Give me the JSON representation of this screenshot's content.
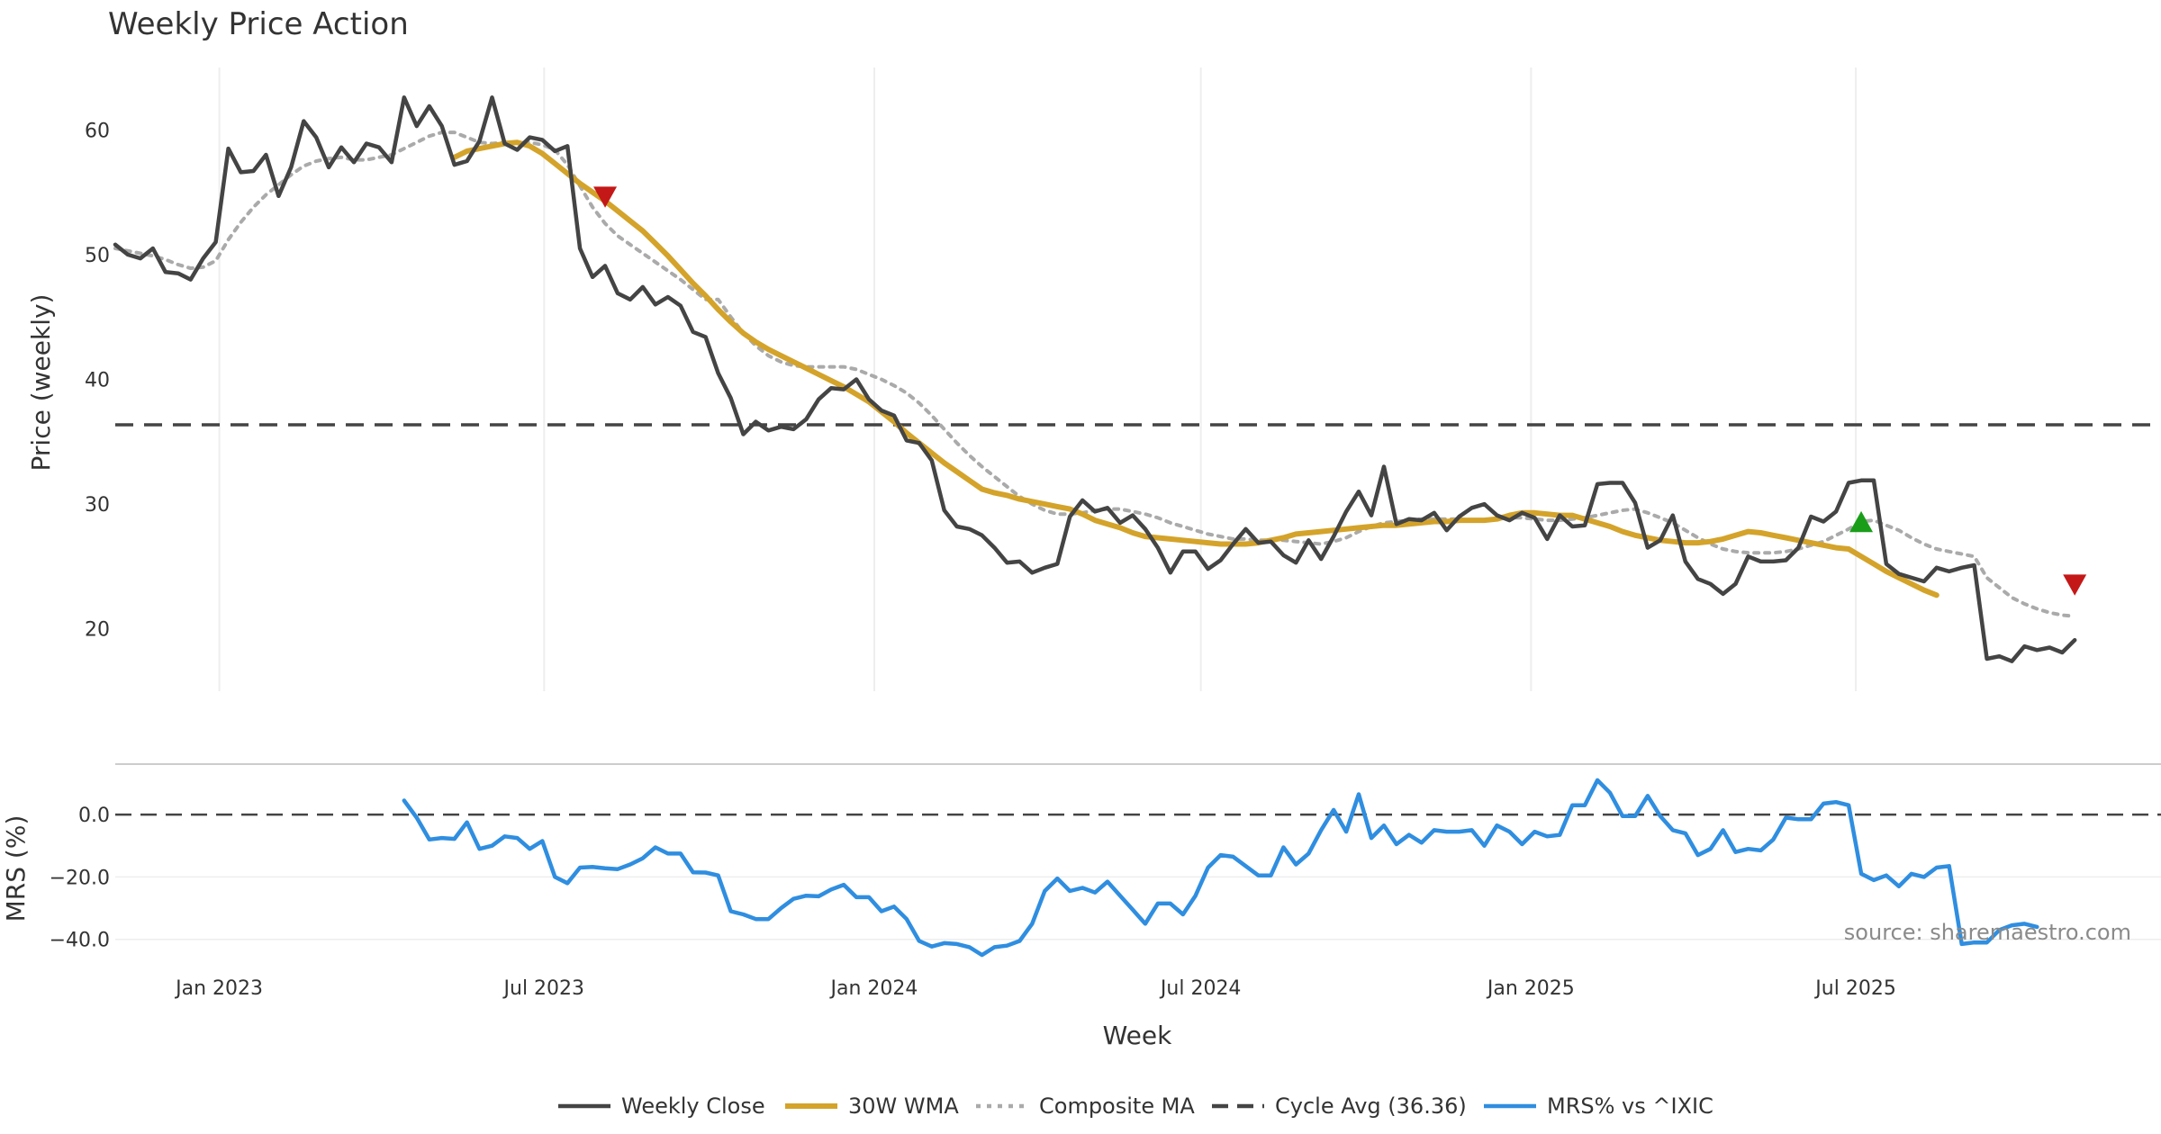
{
  "chart_data": {
    "type": "line",
    "title": "Weekly Price Action",
    "xlabel": "Week",
    "ylabel": "Price (weekly)",
    "ylabel_lower": "MRS (%)",
    "source_note": "source: sharemaestro.com",
    "x_range": [
      "2022-11-04",
      "2025-11-28"
    ],
    "ylim": [
      15,
      65
    ],
    "ylim_lower": [
      -47,
      13
    ],
    "yticks": [
      20,
      30,
      40,
      50,
      60
    ],
    "yticks_lower": [
      0,
      -20,
      -40
    ],
    "ytick_labels_lower": [
      "0.0",
      "−20.0",
      "−40.0"
    ],
    "xticks": [
      {
        "date": "2023-01-01",
        "label": "Jan 2023"
      },
      {
        "date": "2023-07-01",
        "label": "Jul 2023"
      },
      {
        "date": "2024-01-01",
        "label": "Jan 2024"
      },
      {
        "date": "2024-07-01",
        "label": "Jul 2024"
      },
      {
        "date": "2025-01-01",
        "label": "Jan 2025"
      },
      {
        "date": "2025-07-01",
        "label": "Jul 2025"
      }
    ],
    "reference_lines": [
      {
        "name": "Cycle Avg (36.36)",
        "value": 36.36,
        "panel": "price"
      },
      {
        "name": "zero",
        "value": 0,
        "panel": "mrs"
      }
    ],
    "colors": {
      "close": "#444444",
      "wma": "#d4a32a",
      "composite": "#aaaaaa",
      "cycle": "#444444",
      "mrs": "#2f8ee0",
      "buy_marker": "#1a9e1a",
      "sell_marker": "#c41818",
      "grid": "#eeeeee"
    },
    "series": [
      {
        "name": "Weekly Close",
        "panel": "price",
        "start": "2022-11-04",
        "step_days": 7,
        "values": [
          50.8,
          50.0,
          49.7,
          50.5,
          48.6,
          48.5,
          48.0,
          49.7,
          51.0,
          58.5,
          56.6,
          56.7,
          58.0,
          54.7,
          57.0,
          60.7,
          59.4,
          57.0,
          58.6,
          57.4,
          58.9,
          58.6,
          57.4,
          62.6,
          60.3,
          61.9,
          60.3,
          57.2,
          57.5,
          59.1,
          62.6,
          58.9,
          58.4,
          59.4,
          59.2,
          58.3,
          58.7,
          50.5,
          48.2,
          49.1,
          46.9,
          46.4,
          47.4,
          46.0,
          46.6,
          45.9,
          43.8,
          43.4,
          40.5,
          38.5,
          35.6,
          36.6,
          35.9,
          36.2,
          36.0,
          36.8,
          38.4,
          39.3,
          39.2,
          40.0,
          38.4,
          37.5,
          37.1,
          35.1,
          34.9,
          33.5,
          29.5,
          28.2,
          28.0,
          27.5,
          26.5,
          25.3,
          25.4,
          24.5,
          24.9,
          25.2,
          29.0,
          30.3,
          29.4,
          29.7,
          28.5,
          29.1,
          28.0,
          26.5,
          24.5,
          26.2,
          26.2,
          24.8,
          25.5,
          26.8,
          28.0,
          26.9,
          27.0,
          25.9,
          25.3,
          27.1,
          25.6,
          27.4,
          29.4,
          31.0,
          29.1,
          33.0,
          28.4,
          28.8,
          28.7,
          29.3,
          27.9,
          29.0,
          29.7,
          30.0,
          29.1,
          28.7,
          29.3,
          28.9,
          27.2,
          29.1,
          28.2,
          28.3,
          31.6,
          31.7,
          31.7,
          30.1,
          26.5,
          27.1,
          29.1,
          25.4,
          24.0,
          23.6,
          22.8,
          23.6,
          25.8,
          25.4,
          25.4,
          25.5,
          26.5,
          29.0,
          28.6,
          29.4,
          31.7,
          31.9,
          31.9,
          25.2,
          24.4,
          24.1,
          23.8,
          24.9,
          24.6,
          24.9,
          25.1,
          17.6,
          17.8,
          17.4,
          18.6,
          18.3,
          18.5,
          18.1,
          19.1
        ]
      },
      {
        "name": "30W WMA",
        "panel": "price",
        "start": "2023-05-12",
        "step_days": 7,
        "values": [
          57.8,
          58.3,
          58.5,
          58.7,
          58.9,
          59.0,
          58.7,
          58.1,
          57.3,
          56.5,
          55.7,
          55.0,
          54.3,
          53.5,
          52.7,
          51.9,
          50.9,
          49.9,
          48.8,
          47.7,
          46.7,
          45.6,
          44.6,
          43.7,
          43.0,
          42.4,
          41.9,
          41.4,
          40.9,
          40.4,
          39.9,
          39.4,
          38.8,
          38.2,
          37.4,
          36.6,
          35.7,
          34.9,
          34.1,
          33.3,
          32.6,
          31.9,
          31.2,
          30.9,
          30.7,
          30.4,
          30.2,
          30.0,
          29.8,
          29.6,
          29.2,
          28.7,
          28.4,
          28.1,
          27.7,
          27.4,
          27.3,
          27.2,
          27.1,
          27.0,
          26.9,
          26.8,
          26.8,
          26.8,
          26.9,
          27.1,
          27.3,
          27.6,
          27.7,
          27.8,
          27.9,
          28.0,
          28.1,
          28.2,
          28.3,
          28.3,
          28.4,
          28.5,
          28.6,
          28.6,
          28.7,
          28.7,
          28.7,
          28.8,
          29.1,
          29.3,
          29.3,
          29.2,
          29.1,
          29.1,
          28.8,
          28.5,
          28.2,
          27.8,
          27.5,
          27.3,
          27.1,
          27.0,
          26.9,
          26.9,
          27.0,
          27.2,
          27.5,
          27.8,
          27.7,
          27.5,
          27.3,
          27.1,
          26.9,
          26.7,
          26.5,
          26.4,
          25.8,
          25.2,
          24.6,
          24.1,
          23.6,
          23.1,
          22.7
        ]
      },
      {
        "name": "Composite MA",
        "panel": "price",
        "start": "2022-11-04",
        "step_days": 7,
        "values": [
          50.5,
          50.3,
          50.1,
          49.9,
          49.6,
          49.2,
          48.9,
          49.0,
          49.5,
          51.2,
          52.6,
          53.8,
          54.8,
          55.6,
          56.4,
          57.1,
          57.5,
          57.7,
          57.8,
          57.6,
          57.6,
          57.8,
          58.0,
          58.5,
          59.0,
          59.5,
          59.8,
          59.8,
          59.4,
          59.0,
          58.9,
          59.0,
          59.0,
          59.0,
          58.8,
          58.4,
          57.2,
          55.5,
          53.8,
          52.5,
          51.5,
          50.8,
          50.1,
          49.4,
          48.7,
          48.0,
          47.2,
          46.4,
          46.4,
          45.0,
          43.7,
          42.7,
          41.9,
          41.4,
          41.1,
          41.0,
          41.0,
          41.0,
          41.0,
          40.8,
          40.4,
          40.0,
          39.5,
          38.9,
          38.1,
          37.1,
          36.0,
          34.9,
          33.9,
          33.0,
          32.2,
          31.4,
          30.6,
          30.0,
          29.5,
          29.2,
          29.2,
          29.3,
          29.5,
          29.6,
          29.6,
          29.4,
          29.2,
          28.9,
          28.5,
          28.2,
          27.9,
          27.6,
          27.4,
          27.2,
          27.2,
          27.1,
          27.1,
          27.1,
          27.0,
          26.9,
          26.8,
          27.0,
          27.3,
          27.8,
          28.2,
          28.5,
          28.6,
          28.7,
          28.8,
          28.8,
          28.8,
          28.8,
          28.7,
          28.7,
          28.8,
          28.9,
          28.9,
          28.8,
          28.7,
          28.7,
          28.8,
          28.9,
          29.1,
          29.3,
          29.5,
          29.6,
          29.3,
          28.9,
          28.5,
          27.9,
          27.3,
          26.8,
          26.4,
          26.2,
          26.1,
          26.1,
          26.1,
          26.2,
          26.4,
          26.7,
          27.0,
          27.5,
          28.0,
          28.6,
          28.7,
          28.3,
          27.9,
          27.3,
          26.8,
          26.4,
          26.2,
          26.0,
          25.8,
          24.1,
          23.3,
          22.5,
          22.0,
          21.6,
          21.3,
          21.1,
          21.0
        ]
      },
      {
        "name": "MRS% vs ^IXIC",
        "panel": "mrs",
        "start": "2023-04-14",
        "step_days": 7,
        "values": [
          4.5,
          -1,
          -8,
          -7.5,
          -7.8,
          -2.5,
          -11,
          -10,
          -7,
          -7.5,
          -11,
          -8.5,
          -20,
          -22,
          -17,
          -16.8,
          -17.2,
          -17.5,
          -16,
          -14,
          -10.5,
          -12.5,
          -12.5,
          -18.5,
          -18.6,
          -19.5,
          -31,
          -32,
          -33.5,
          -33.5,
          -30,
          -27,
          -26,
          -26.2,
          -24,
          -22.5,
          -26.5,
          -26.5,
          -31,
          -29.5,
          -33.5,
          -40.5,
          -42.3,
          -41.2,
          -41.5,
          -42.5,
          -45,
          -42.5,
          -42,
          -40.5,
          -35,
          -24.5,
          -20.5,
          -24.5,
          -23.5,
          -25,
          -21.5,
          -26,
          -30.5,
          -35,
          -28.5,
          -28.5,
          -32,
          -26,
          -17,
          -13,
          -13.5,
          -16.5,
          -19.5,
          -19.5,
          -10.5,
          -16,
          -12.5,
          -5,
          1.5,
          -5.5,
          6.5,
          -7.5,
          -3.5,
          -9.5,
          -6.5,
          -9,
          -5,
          -5.5,
          -5.5,
          -5,
          -10,
          -3.5,
          -5.5,
          -9.5,
          -5.5,
          -7,
          -6.5,
          3,
          3,
          11,
          7,
          -0.5,
          -0.5,
          6,
          -0.5,
          -5,
          -6,
          -13,
          -11,
          -5,
          -12,
          -11,
          -11.5,
          -8,
          -1,
          -1.5,
          -1.5,
          3.5,
          4,
          3,
          -19,
          -21,
          -19.5,
          -23,
          -19,
          -20,
          -17,
          -16.5,
          -41.5,
          -41,
          -41,
          -37,
          -35.5,
          -35,
          -36
        ]
      }
    ],
    "markers": [
      {
        "type": "sell",
        "date": "2023-08-04",
        "value": 54.7
      },
      {
        "type": "buy",
        "date": "2025-07-04",
        "value": 28.5
      },
      {
        "type": "sell",
        "date": "2025-10-31",
        "value": 23.6
      }
    ],
    "legend": [
      {
        "label": "Weekly Close",
        "style": "solid",
        "color": "#444444"
      },
      {
        "label": "30W WMA",
        "style": "solid",
        "color": "#d4a32a"
      },
      {
        "label": "Composite MA",
        "style": "dotted",
        "color": "#aaaaaa"
      },
      {
        "label": "Cycle Avg (36.36)",
        "style": "dashed",
        "color": "#444444"
      },
      {
        "label": "MRS% vs ^IXIC",
        "style": "solid",
        "color": "#2f8ee0"
      }
    ]
  }
}
